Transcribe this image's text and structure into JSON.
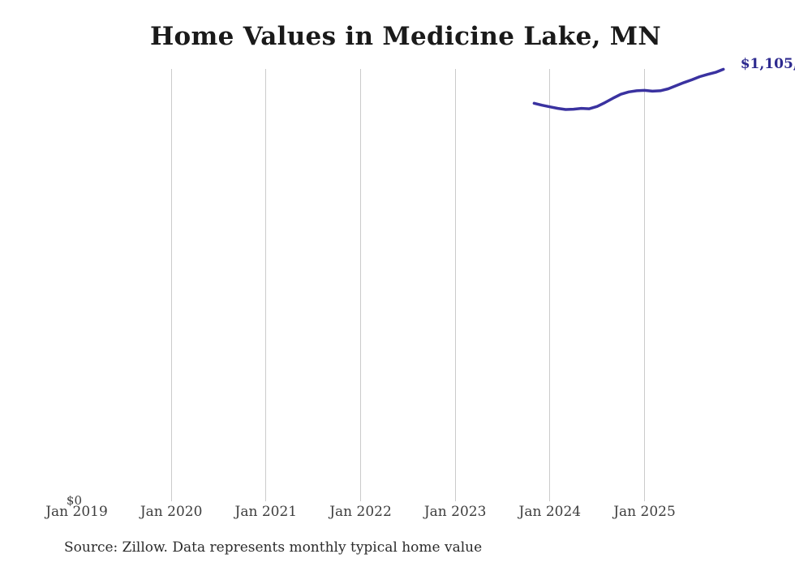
{
  "chart_data": {
    "type": "line",
    "title": "Home Values in Medicine Lake, MN",
    "source_note": "Source: Zillow. Data represents monthly typical home value",
    "y_zero_label": "$0",
    "end_label": "$1,105,",
    "legend": "none",
    "grid": "vertical-only",
    "colors": {
      "line": "#3a32a0",
      "end_label": "#2d2a8f",
      "gridline": "#cbcbcb",
      "axis_label": "#3d3d3d",
      "title": "#1a1a1a"
    },
    "xlabel": "",
    "ylabel": "",
    "ylim": [
      0,
      1180000
    ],
    "xlim_months": [
      "2019-01",
      "2025-12"
    ],
    "x_ticks": [
      {
        "label": "Jan 2019",
        "date": "2019-01",
        "gridline": false
      },
      {
        "label": "Jan 2020",
        "date": "2020-01",
        "gridline": true
      },
      {
        "label": "Jan 2021",
        "date": "2021-01",
        "gridline": true
      },
      {
        "label": "Jan 2022",
        "date": "2022-01",
        "gridline": true
      },
      {
        "label": "Jan 2023",
        "date": "2023-01",
        "gridline": true
      },
      {
        "label": "Jan 2024",
        "date": "2024-01",
        "gridline": true
      },
      {
        "label": "Jan 2025",
        "date": "2025-01",
        "gridline": true
      }
    ],
    "series": [
      {
        "name": "Monthly typical home value",
        "points": [
          {
            "date": "2023-11",
            "value": 1018000
          },
          {
            "date": "2023-12",
            "value": 1013000
          },
          {
            "date": "2024-01",
            "value": 1009000
          },
          {
            "date": "2024-02",
            "value": 1005000
          },
          {
            "date": "2024-03",
            "value": 1002000
          },
          {
            "date": "2024-04",
            "value": 1003000
          },
          {
            "date": "2024-05",
            "value": 1005000
          },
          {
            "date": "2024-06",
            "value": 1004000
          },
          {
            "date": "2024-07",
            "value": 1010000
          },
          {
            "date": "2024-08",
            "value": 1020000
          },
          {
            "date": "2024-09",
            "value": 1031000
          },
          {
            "date": "2024-10",
            "value": 1041000
          },
          {
            "date": "2024-11",
            "value": 1047000
          },
          {
            "date": "2024-12",
            "value": 1050000
          },
          {
            "date": "2025-01",
            "value": 1051000
          },
          {
            "date": "2025-02",
            "value": 1049000
          },
          {
            "date": "2025-03",
            "value": 1050000
          },
          {
            "date": "2025-04",
            "value": 1055000
          },
          {
            "date": "2025-05",
            "value": 1063000
          },
          {
            "date": "2025-06",
            "value": 1071000
          },
          {
            "date": "2025-07",
            "value": 1078000
          },
          {
            "date": "2025-08",
            "value": 1086000
          },
          {
            "date": "2025-09",
            "value": 1092000
          },
          {
            "date": "2025-10",
            "value": 1097000
          },
          {
            "date": "2025-11",
            "value": 1105000
          }
        ]
      }
    ]
  }
}
